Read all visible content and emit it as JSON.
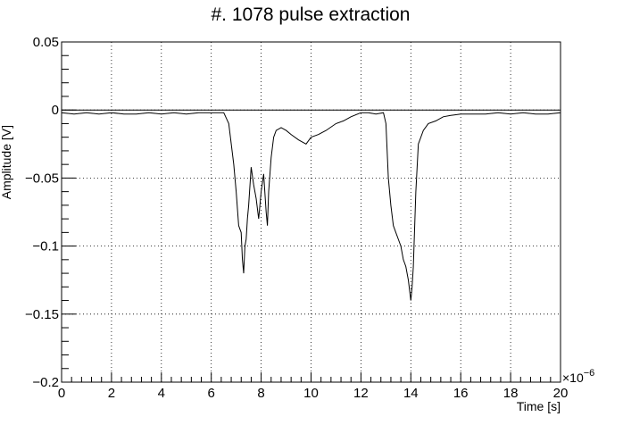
{
  "chart_data": {
    "type": "line",
    "title": "#. 1078 pulse extraction",
    "xlabel": "Time [s]",
    "ylabel": "Amplitude [V]",
    "x_multiplier_label": "×10",
    "x_multiplier_exponent": "−6",
    "xlim": [
      0,
      20
    ],
    "ylim": [
      -0.2,
      0.05
    ],
    "x_ticks": [
      0,
      2,
      4,
      6,
      8,
      10,
      12,
      14,
      16,
      18,
      20
    ],
    "x_tick_labels": [
      "0",
      "2",
      "4",
      "6",
      "8",
      "10",
      "12",
      "14",
      "16",
      "18",
      "20"
    ],
    "y_ticks": [
      0.05,
      0,
      -0.05,
      -0.1,
      -0.15,
      -0.2
    ],
    "y_tick_labels": [
      "0.05",
      "0",
      "−0.05",
      "−0.1",
      "−0.15",
      "−0.2"
    ],
    "grid": true,
    "baseline": 0,
    "series": [
      {
        "x": [
          0,
          0.5,
          1,
          1.5,
          2,
          2.5,
          3,
          3.5,
          4,
          4.5,
          5,
          5.5,
          6,
          6.5,
          6.7,
          6.9,
          7.0,
          7.1,
          7.2,
          7.25,
          7.3,
          7.35,
          7.4,
          7.45,
          7.5,
          7.6,
          7.7,
          7.8,
          7.9,
          8.0,
          8.1,
          8.2,
          8.25,
          8.3,
          8.4,
          8.5,
          8.6,
          8.8,
          9.0,
          9.2,
          9.5,
          9.8,
          10.0,
          10.3,
          10.6,
          11.0,
          11.3,
          11.6,
          12.0,
          12.3,
          12.6,
          12.9,
          13.0,
          13.1,
          13.2,
          13.3,
          13.4,
          13.5,
          13.6,
          13.7,
          13.8,
          13.9,
          14.0,
          14.05,
          14.1,
          14.2,
          14.3,
          14.5,
          14.7,
          15.0,
          15.3,
          15.6,
          16.0,
          16.5,
          17.0,
          17.5,
          18.0,
          18.5,
          19.0,
          19.5,
          20.0
        ],
        "y": [
          -0.002,
          -0.003,
          -0.002,
          -0.003,
          -0.002,
          -0.003,
          -0.003,
          -0.002,
          -0.003,
          -0.002,
          -0.003,
          -0.002,
          -0.002,
          -0.002,
          -0.01,
          -0.04,
          -0.06,
          -0.085,
          -0.09,
          -0.11,
          -0.12,
          -0.1,
          -0.095,
          -0.08,
          -0.07,
          -0.042,
          -0.055,
          -0.065,
          -0.08,
          -0.06,
          -0.047,
          -0.075,
          -0.085,
          -0.06,
          -0.035,
          -0.02,
          -0.015,
          -0.013,
          -0.015,
          -0.018,
          -0.022,
          -0.025,
          -0.02,
          -0.018,
          -0.015,
          -0.01,
          -0.008,
          -0.005,
          -0.002,
          -0.002,
          -0.003,
          -0.002,
          -0.01,
          -0.05,
          -0.07,
          -0.085,
          -0.09,
          -0.095,
          -0.1,
          -0.11,
          -0.115,
          -0.125,
          -0.14,
          -0.13,
          -0.115,
          -0.06,
          -0.025,
          -0.015,
          -0.01,
          -0.008,
          -0.005,
          -0.004,
          -0.003,
          -0.003,
          -0.003,
          -0.002,
          -0.003,
          -0.002,
          -0.003,
          -0.003,
          -0.002
        ]
      }
    ]
  }
}
